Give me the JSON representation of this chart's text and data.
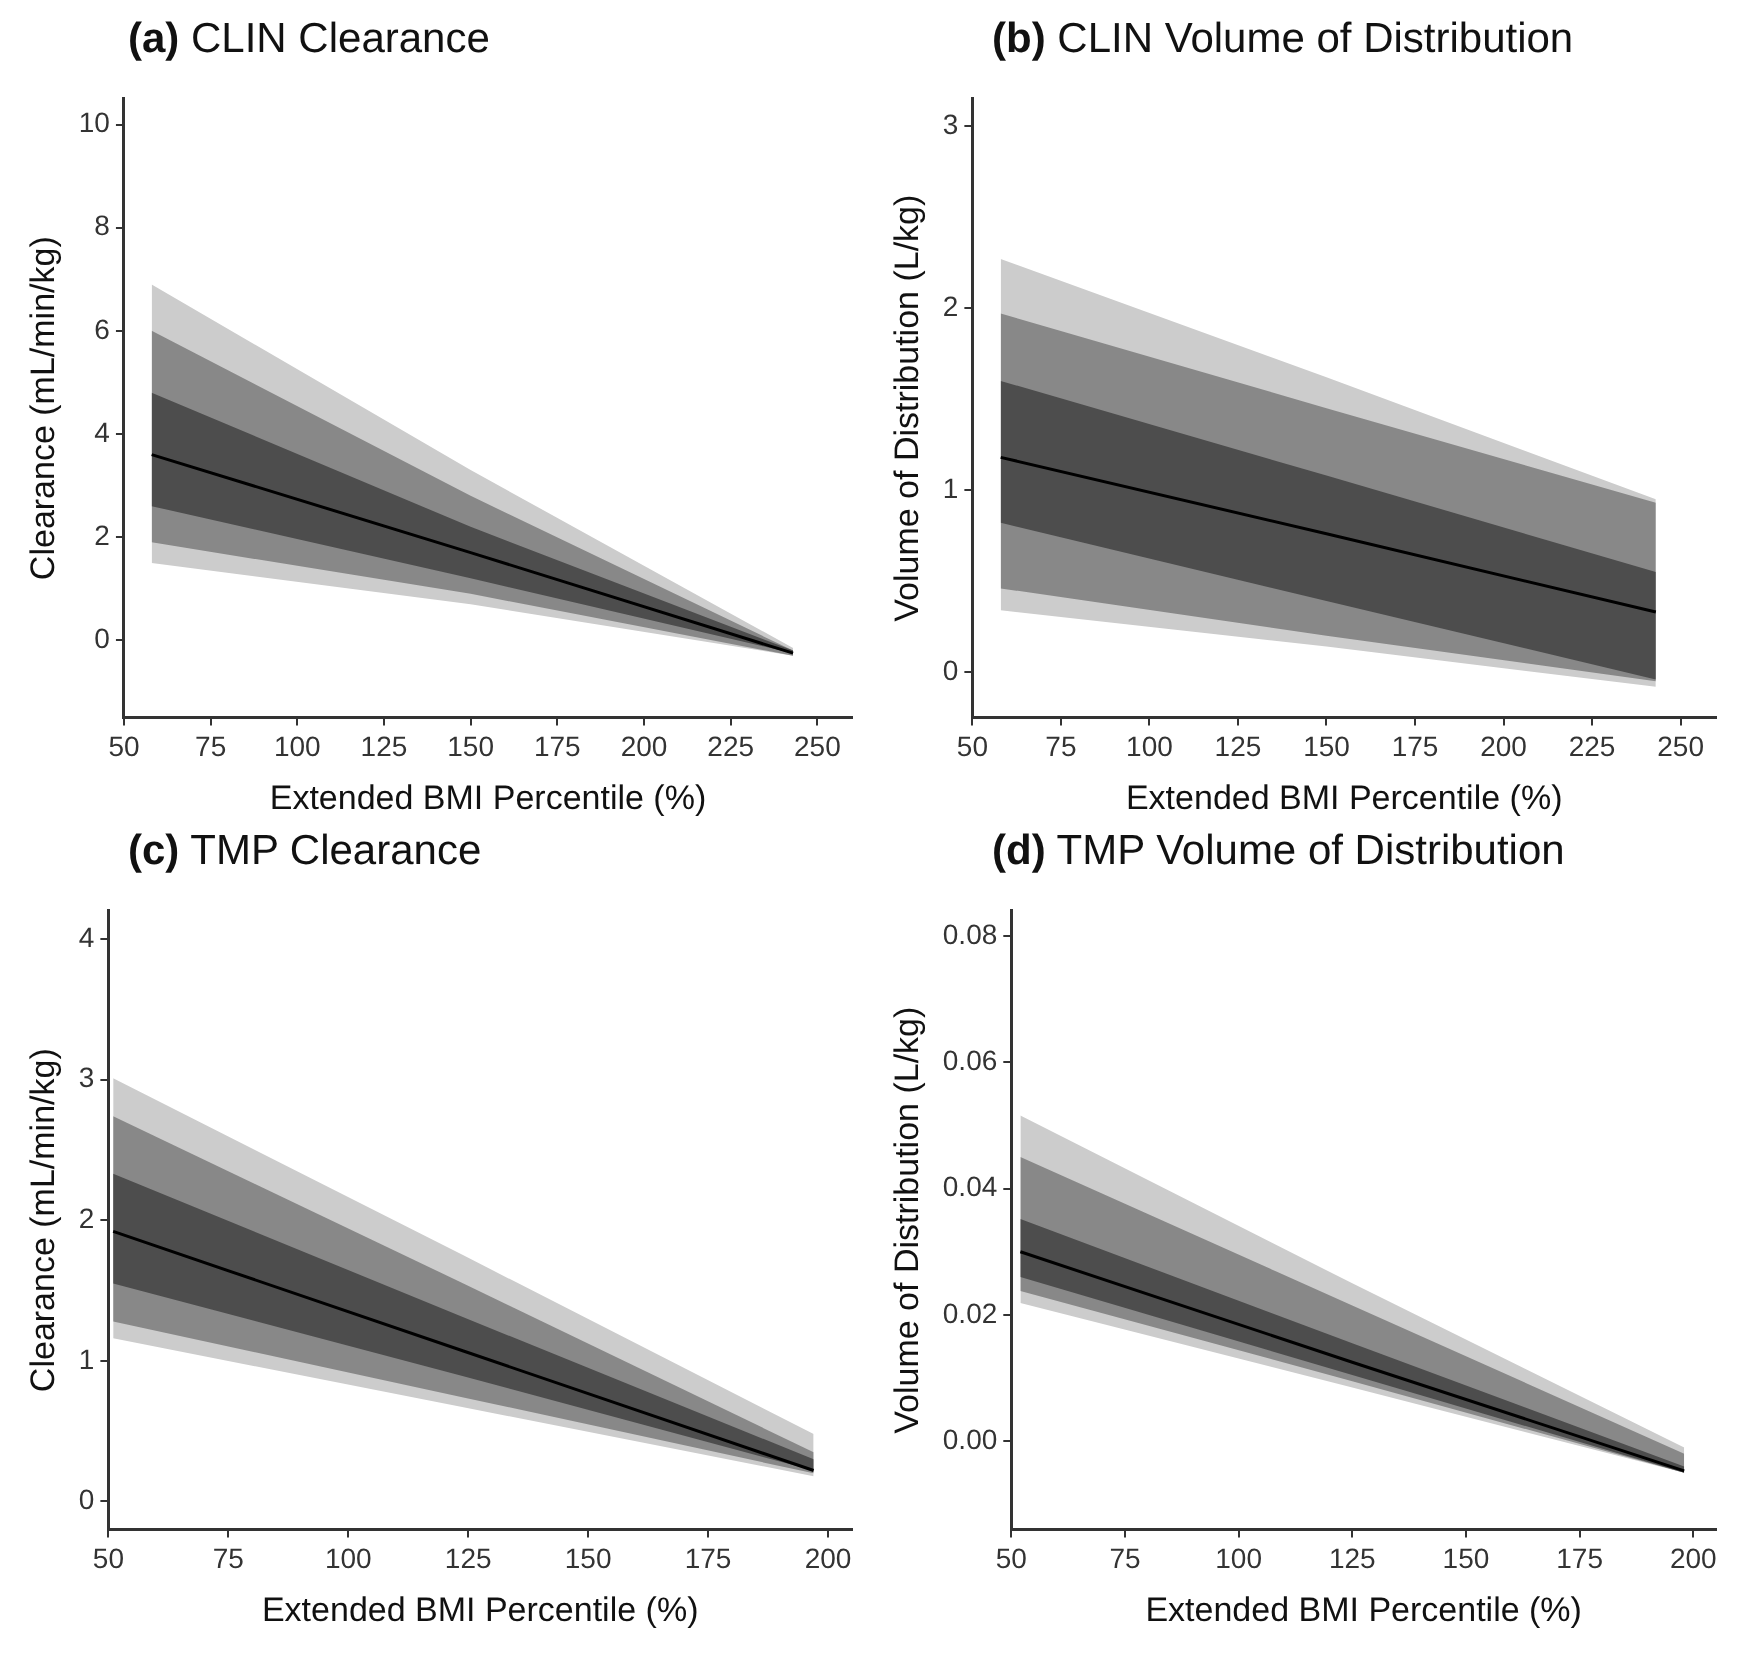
{
  "chart_data": [
    {
      "type": "line",
      "title": "(a) CLIN Clearance",
      "xlabel": "Extended BMI Percentile (%)",
      "ylabel": "Clearance (mL/min/kg)",
      "x": [
        58,
        150,
        243
      ],
      "grid": false,
      "legend": false,
      "xlim": [
        50,
        260
      ],
      "xticks": [
        50,
        75,
        100,
        125,
        150,
        175,
        200,
        225,
        250
      ],
      "ylim": [
        -1.5,
        10.5
      ],
      "yticks": [
        0,
        2,
        4,
        6,
        8,
        10
      ],
      "series": [
        {
          "type": "line",
          "color": "#cccccc",
          "values": [
            null,
            null,
            null
          ],
          "lower": [
            1.5,
            0.7,
            -0.3
          ],
          "upper": [
            6.9,
            3.3,
            -0.15
          ]
        },
        {
          "type": "line",
          "color": "#888888",
          "values": [
            null,
            null,
            null
          ],
          "lower": [
            1.9,
            0.9,
            -0.3
          ],
          "upper": [
            6.0,
            2.8,
            -0.2
          ]
        },
        {
          "type": "line",
          "color": "#4d4d4d",
          "values": [
            null,
            null,
            null
          ],
          "lower": [
            2.6,
            1.2,
            -0.25
          ],
          "upper": [
            4.8,
            2.2,
            -0.2
          ]
        },
        {
          "type": "line",
          "color": "#000000",
          "values": [
            3.6,
            1.7,
            -0.25
          ]
        }
      ]
    },
    {
      "type": "line",
      "title": "(b) CLIN Volume of Distribution",
      "xlabel": "Extended BMI Percentile (%)",
      "ylabel": "Volume of Distribution (L/kg)",
      "x": [
        58,
        150,
        243
      ],
      "grid": false,
      "legend": false,
      "xlim": [
        50,
        260
      ],
      "xticks": [
        50,
        75,
        100,
        125,
        150,
        175,
        200,
        225,
        250
      ],
      "ylim": [
        -0.25,
        3.15
      ],
      "yticks": [
        0,
        1,
        2,
        3
      ],
      "series": [
        {
          "type": "line",
          "color": "#cccccc",
          "values": [
            null,
            null,
            null
          ],
          "lower": [
            0.34,
            0.14,
            -0.08
          ],
          "upper": [
            2.27,
            1.62,
            0.95
          ]
        },
        {
          "type": "line",
          "color": "#888888",
          "values": [
            null,
            null,
            null
          ],
          "lower": [
            0.46,
            0.2,
            -0.05
          ],
          "upper": [
            1.97,
            1.45,
            0.93
          ]
        },
        {
          "type": "line",
          "color": "#4d4d4d",
          "values": [
            null,
            null,
            null
          ],
          "lower": [
            0.82,
            0.39,
            -0.04
          ],
          "upper": [
            1.6,
            1.08,
            0.55
          ]
        },
        {
          "type": "line",
          "color": "#000000",
          "values": [
            1.18,
            0.76,
            0.33
          ]
        }
      ]
    },
    {
      "type": "line",
      "title": "(c) TMP Clearance",
      "xlabel": "Extended BMI Percentile (%)",
      "ylabel": "Clearance (mL/min/kg)",
      "x": [
        51,
        124,
        197
      ],
      "grid": false,
      "legend": false,
      "xlim": [
        50,
        205
      ],
      "xticks": [
        50,
        75,
        100,
        125,
        150,
        175,
        200
      ],
      "ylim": [
        -0.2,
        4.2
      ],
      "yticks": [
        0,
        1,
        2,
        3,
        4
      ],
      "series": [
        {
          "type": "line",
          "color": "#cccccc",
          "values": [
            null,
            null,
            null
          ],
          "lower": [
            1.16,
            0.67,
            0.18
          ],
          "upper": [
            3.01,
            1.75,
            0.48
          ]
        },
        {
          "type": "line",
          "color": "#888888",
          "values": [
            null,
            null,
            null
          ],
          "lower": [
            1.28,
            0.74,
            0.2
          ],
          "upper": [
            2.74,
            1.55,
            0.35
          ]
        },
        {
          "type": "line",
          "color": "#4d4d4d",
          "values": [
            null,
            null,
            null
          ],
          "lower": [
            1.55,
            0.89,
            0.22
          ],
          "upper": [
            2.33,
            1.31,
            0.3
          ]
        },
        {
          "type": "line",
          "color": "#000000",
          "values": [
            1.92,
            1.07,
            0.22
          ]
        }
      ]
    },
    {
      "type": "line",
      "title": "(d) TMP Volume of Distribution",
      "xlabel": "Extended BMI Percentile (%)",
      "ylabel": "Volume of Distribution (L/kg)",
      "x": [
        52,
        125,
        198
      ],
      "grid": false,
      "legend": false,
      "xlim": [
        50,
        205
      ],
      "xticks": [
        50,
        75,
        100,
        125,
        150,
        175,
        200
      ],
      "ylim": [
        -0.014,
        0.084
      ],
      "yticks": [
        {
          "value": 0,
          "label": "0.00"
        },
        {
          "value": 0.02,
          "label": "0.02"
        },
        {
          "value": 0.04,
          "label": "0.04"
        },
        {
          "value": 0.06,
          "label": "0.06"
        },
        {
          "value": 0.08,
          "label": "0.08"
        }
      ],
      "series": [
        {
          "type": "line",
          "color": "#cccccc",
          "values": [
            null,
            null,
            null
          ],
          "lower": [
            0.0219,
            0.0085,
            -0.005
          ],
          "upper": [
            0.0516,
            0.025,
            -0.001
          ]
        },
        {
          "type": "line",
          "color": "#888888",
          "values": [
            null,
            null,
            null
          ],
          "lower": [
            0.0238,
            0.0095,
            -0.005
          ],
          "upper": [
            0.045,
            0.0215,
            -0.002
          ]
        },
        {
          "type": "line",
          "color": "#4d4d4d",
          "values": [
            null,
            null,
            null
          ],
          "lower": [
            0.026,
            0.0105,
            -0.005
          ],
          "upper": [
            0.0352,
            0.0155,
            -0.004
          ]
        },
        {
          "type": "line",
          "color": "#000000",
          "values": [
            0.03,
            0.0125,
            -0.0047
          ]
        }
      ]
    }
  ]
}
